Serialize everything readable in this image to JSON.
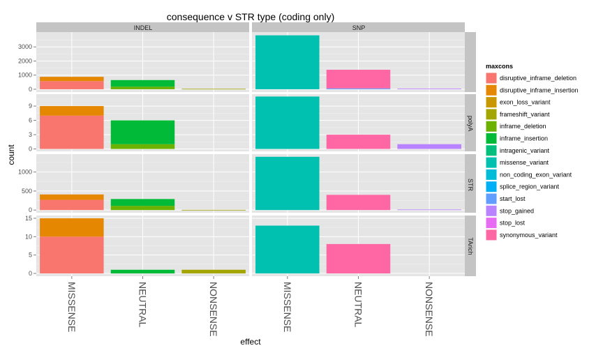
{
  "chart_data": {
    "type": "bar",
    "stacked": true,
    "title": "consequence v STR type (coding only)",
    "xlabel": "effect",
    "ylabel": "count",
    "categories": [
      "MISSENSE",
      "NEUTRAL",
      "NONSENSE"
    ],
    "columns": [
      "INDEL",
      "SNP"
    ],
    "rows": [
      "",
      "polyA",
      "STR",
      "TArich"
    ],
    "row_scales": [
      {
        "ylim": [
          -200,
          4050
        ],
        "ticks": [
          0,
          1000,
          2000,
          3000
        ]
      },
      {
        "ylim": [
          -0.5,
          11.5
        ],
        "ticks": [
          0,
          3,
          6,
          9
        ]
      },
      {
        "ylim": [
          -70,
          1470
        ],
        "ticks": [
          0,
          500,
          1000
        ]
      },
      {
        "ylim": [
          -0.75,
          15.75
        ],
        "ticks": [
          0,
          5,
          10,
          15
        ]
      }
    ],
    "legend": {
      "title": "maxcons",
      "position": "right",
      "entries": [
        {
          "label": "disruptive_inframe_deletion",
          "color": "#F8766D"
        },
        {
          "label": "disruptive_inframe_insertion",
          "color": "#E58700"
        },
        {
          "label": "exon_loss_variant",
          "color": "#C99800"
        },
        {
          "label": "frameshift_variant",
          "color": "#A3A500"
        },
        {
          "label": "inframe_deletion",
          "color": "#6BB100"
        },
        {
          "label": "inframe_insertion",
          "color": "#00BA38"
        },
        {
          "label": "intragenic_variant",
          "color": "#00BF7D"
        },
        {
          "label": "missense_variant",
          "color": "#00C0AF"
        },
        {
          "label": "non_coding_exon_variant",
          "color": "#00BCD8"
        },
        {
          "label": "splice_region_variant",
          "color": "#00B0F6"
        },
        {
          "label": "start_lost",
          "color": "#619CFF"
        },
        {
          "label": "stop_gained",
          "color": "#B983FF"
        },
        {
          "label": "stop_lost",
          "color": "#E76BF3"
        },
        {
          "label": "synonymous_variant",
          "color": "#FF67A4"
        }
      ]
    },
    "panels": [
      {
        "row": 0,
        "col": 0,
        "bars": [
          {
            "category": "MISSENSE",
            "segments": [
              {
                "fill": "disruptive_inframe_deletion",
                "value": 580
              },
              {
                "fill": "disruptive_inframe_insertion",
                "value": 300
              }
            ]
          },
          {
            "category": "NEUTRAL",
            "segments": [
              {
                "fill": "inframe_deletion",
                "value": 180
              },
              {
                "fill": "inframe_insertion",
                "value": 470
              }
            ]
          },
          {
            "category": "NONSENSE",
            "segments": [
              {
                "fill": "frameshift_variant",
                "value": 30
              }
            ]
          }
        ]
      },
      {
        "row": 0,
        "col": 1,
        "bars": [
          {
            "category": "MISSENSE",
            "segments": [
              {
                "fill": "missense_variant",
                "value": 3820
              }
            ]
          },
          {
            "category": "NEUTRAL",
            "segments": [
              {
                "fill": "start_lost",
                "value": 60
              },
              {
                "fill": "synonymous_variant",
                "value": 1320
              }
            ]
          },
          {
            "category": "NONSENSE",
            "segments": [
              {
                "fill": "stop_gained",
                "value": 45
              }
            ]
          }
        ]
      },
      {
        "row": 1,
        "col": 0,
        "bars": [
          {
            "category": "MISSENSE",
            "segments": [
              {
                "fill": "disruptive_inframe_deletion",
                "value": 7
              },
              {
                "fill": "disruptive_inframe_insertion",
                "value": 2
              }
            ]
          },
          {
            "category": "NEUTRAL",
            "segments": [
              {
                "fill": "inframe_deletion",
                "value": 1
              },
              {
                "fill": "inframe_insertion",
                "value": 5
              }
            ]
          }
        ]
      },
      {
        "row": 1,
        "col": 1,
        "bars": [
          {
            "category": "MISSENSE",
            "segments": [
              {
                "fill": "missense_variant",
                "value": 11
              }
            ]
          },
          {
            "category": "NEUTRAL",
            "segments": [
              {
                "fill": "synonymous_variant",
                "value": 3
              }
            ]
          },
          {
            "category": "NONSENSE",
            "segments": [
              {
                "fill": "stop_gained",
                "value": 1
              }
            ]
          }
        ]
      },
      {
        "row": 2,
        "col": 0,
        "bars": [
          {
            "category": "MISSENSE",
            "segments": [
              {
                "fill": "disruptive_inframe_deletion",
                "value": 270
              },
              {
                "fill": "disruptive_inframe_insertion",
                "value": 140
              }
            ]
          },
          {
            "category": "NEUTRAL",
            "segments": [
              {
                "fill": "inframe_deletion",
                "value": 110
              },
              {
                "fill": "inframe_insertion",
                "value": 180
              }
            ]
          },
          {
            "category": "NONSENSE",
            "segments": [
              {
                "fill": "frameshift_variant",
                "value": 5
              }
            ]
          }
        ]
      },
      {
        "row": 2,
        "col": 1,
        "bars": [
          {
            "category": "MISSENSE",
            "segments": [
              {
                "fill": "missense_variant",
                "value": 1400
              }
            ]
          },
          {
            "category": "NEUTRAL",
            "segments": [
              {
                "fill": "synonymous_variant",
                "value": 400
              }
            ]
          },
          {
            "category": "NONSENSE",
            "segments": [
              {
                "fill": "stop_gained",
                "value": 15
              }
            ]
          }
        ]
      },
      {
        "row": 3,
        "col": 0,
        "bars": [
          {
            "category": "MISSENSE",
            "segments": [
              {
                "fill": "disruptive_inframe_deletion",
                "value": 10
              },
              {
                "fill": "disruptive_inframe_insertion",
                "value": 5
              }
            ]
          },
          {
            "category": "NEUTRAL",
            "segments": [
              {
                "fill": "inframe_insertion",
                "value": 1
              }
            ]
          },
          {
            "category": "NONSENSE",
            "segments": [
              {
                "fill": "frameshift_variant",
                "value": 1
              }
            ]
          }
        ]
      },
      {
        "row": 3,
        "col": 1,
        "bars": [
          {
            "category": "MISSENSE",
            "segments": [
              {
                "fill": "missense_variant",
                "value": 13
              }
            ]
          },
          {
            "category": "NEUTRAL",
            "segments": [
              {
                "fill": "synonymous_variant",
                "value": 8
              }
            ]
          }
        ]
      }
    ]
  }
}
